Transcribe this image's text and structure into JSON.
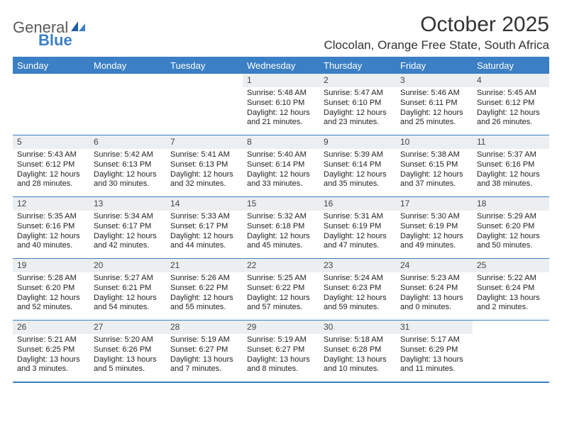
{
  "logo": {
    "text1": "General",
    "text2": "Blue"
  },
  "title": "October 2025",
  "location": "Clocolan, Orange Free State, South Africa",
  "colors": {
    "accent": "#3b7fc4",
    "header_bg": "#3b7fc4",
    "header_text": "#ffffff",
    "daynum_bg": "#eceff1",
    "border": "#3b7fc4",
    "body_text": "#222222",
    "title_text": "#333333",
    "logo_gray": "#5a5a5a"
  },
  "typography": {
    "title_fontsize": 30,
    "location_fontsize": 17,
    "dayheader_fontsize": 13,
    "daynum_fontsize": 12,
    "cell_fontsize": 11,
    "font_family": "Arial"
  },
  "layout": {
    "columns": 7,
    "rows": 5,
    "cell_min_height": 86
  },
  "day_headers": [
    "Sunday",
    "Monday",
    "Tuesday",
    "Wednesday",
    "Thursday",
    "Friday",
    "Saturday"
  ],
  "weeks": [
    [
      {
        "n": "",
        "sr": "",
        "ss": "",
        "dl": ""
      },
      {
        "n": "",
        "sr": "",
        "ss": "",
        "dl": ""
      },
      {
        "n": "",
        "sr": "",
        "ss": "",
        "dl": ""
      },
      {
        "n": "1",
        "sr": "Sunrise: 5:48 AM",
        "ss": "Sunset: 6:10 PM",
        "dl": "Daylight: 12 hours and 21 minutes."
      },
      {
        "n": "2",
        "sr": "Sunrise: 5:47 AM",
        "ss": "Sunset: 6:10 PM",
        "dl": "Daylight: 12 hours and 23 minutes."
      },
      {
        "n": "3",
        "sr": "Sunrise: 5:46 AM",
        "ss": "Sunset: 6:11 PM",
        "dl": "Daylight: 12 hours and 25 minutes."
      },
      {
        "n": "4",
        "sr": "Sunrise: 5:45 AM",
        "ss": "Sunset: 6:12 PM",
        "dl": "Daylight: 12 hours and 26 minutes."
      }
    ],
    [
      {
        "n": "5",
        "sr": "Sunrise: 5:43 AM",
        "ss": "Sunset: 6:12 PM",
        "dl": "Daylight: 12 hours and 28 minutes."
      },
      {
        "n": "6",
        "sr": "Sunrise: 5:42 AM",
        "ss": "Sunset: 6:13 PM",
        "dl": "Daylight: 12 hours and 30 minutes."
      },
      {
        "n": "7",
        "sr": "Sunrise: 5:41 AM",
        "ss": "Sunset: 6:13 PM",
        "dl": "Daylight: 12 hours and 32 minutes."
      },
      {
        "n": "8",
        "sr": "Sunrise: 5:40 AM",
        "ss": "Sunset: 6:14 PM",
        "dl": "Daylight: 12 hours and 33 minutes."
      },
      {
        "n": "9",
        "sr": "Sunrise: 5:39 AM",
        "ss": "Sunset: 6:14 PM",
        "dl": "Daylight: 12 hours and 35 minutes."
      },
      {
        "n": "10",
        "sr": "Sunrise: 5:38 AM",
        "ss": "Sunset: 6:15 PM",
        "dl": "Daylight: 12 hours and 37 minutes."
      },
      {
        "n": "11",
        "sr": "Sunrise: 5:37 AM",
        "ss": "Sunset: 6:16 PM",
        "dl": "Daylight: 12 hours and 38 minutes."
      }
    ],
    [
      {
        "n": "12",
        "sr": "Sunrise: 5:35 AM",
        "ss": "Sunset: 6:16 PM",
        "dl": "Daylight: 12 hours and 40 minutes."
      },
      {
        "n": "13",
        "sr": "Sunrise: 5:34 AM",
        "ss": "Sunset: 6:17 PM",
        "dl": "Daylight: 12 hours and 42 minutes."
      },
      {
        "n": "14",
        "sr": "Sunrise: 5:33 AM",
        "ss": "Sunset: 6:17 PM",
        "dl": "Daylight: 12 hours and 44 minutes."
      },
      {
        "n": "15",
        "sr": "Sunrise: 5:32 AM",
        "ss": "Sunset: 6:18 PM",
        "dl": "Daylight: 12 hours and 45 minutes."
      },
      {
        "n": "16",
        "sr": "Sunrise: 5:31 AM",
        "ss": "Sunset: 6:19 PM",
        "dl": "Daylight: 12 hours and 47 minutes."
      },
      {
        "n": "17",
        "sr": "Sunrise: 5:30 AM",
        "ss": "Sunset: 6:19 PM",
        "dl": "Daylight: 12 hours and 49 minutes."
      },
      {
        "n": "18",
        "sr": "Sunrise: 5:29 AM",
        "ss": "Sunset: 6:20 PM",
        "dl": "Daylight: 12 hours and 50 minutes."
      }
    ],
    [
      {
        "n": "19",
        "sr": "Sunrise: 5:28 AM",
        "ss": "Sunset: 6:20 PM",
        "dl": "Daylight: 12 hours and 52 minutes."
      },
      {
        "n": "20",
        "sr": "Sunrise: 5:27 AM",
        "ss": "Sunset: 6:21 PM",
        "dl": "Daylight: 12 hours and 54 minutes."
      },
      {
        "n": "21",
        "sr": "Sunrise: 5:26 AM",
        "ss": "Sunset: 6:22 PM",
        "dl": "Daylight: 12 hours and 55 minutes."
      },
      {
        "n": "22",
        "sr": "Sunrise: 5:25 AM",
        "ss": "Sunset: 6:22 PM",
        "dl": "Daylight: 12 hours and 57 minutes."
      },
      {
        "n": "23",
        "sr": "Sunrise: 5:24 AM",
        "ss": "Sunset: 6:23 PM",
        "dl": "Daylight: 12 hours and 59 minutes."
      },
      {
        "n": "24",
        "sr": "Sunrise: 5:23 AM",
        "ss": "Sunset: 6:24 PM",
        "dl": "Daylight: 13 hours and 0 minutes."
      },
      {
        "n": "25",
        "sr": "Sunrise: 5:22 AM",
        "ss": "Sunset: 6:24 PM",
        "dl": "Daylight: 13 hours and 2 minutes."
      }
    ],
    [
      {
        "n": "26",
        "sr": "Sunrise: 5:21 AM",
        "ss": "Sunset: 6:25 PM",
        "dl": "Daylight: 13 hours and 3 minutes."
      },
      {
        "n": "27",
        "sr": "Sunrise: 5:20 AM",
        "ss": "Sunset: 6:26 PM",
        "dl": "Daylight: 13 hours and 5 minutes."
      },
      {
        "n": "28",
        "sr": "Sunrise: 5:19 AM",
        "ss": "Sunset: 6:27 PM",
        "dl": "Daylight: 13 hours and 7 minutes."
      },
      {
        "n": "29",
        "sr": "Sunrise: 5:19 AM",
        "ss": "Sunset: 6:27 PM",
        "dl": "Daylight: 13 hours and 8 minutes."
      },
      {
        "n": "30",
        "sr": "Sunrise: 5:18 AM",
        "ss": "Sunset: 6:28 PM",
        "dl": "Daylight: 13 hours and 10 minutes."
      },
      {
        "n": "31",
        "sr": "Sunrise: 5:17 AM",
        "ss": "Sunset: 6:29 PM",
        "dl": "Daylight: 13 hours and 11 minutes."
      },
      {
        "n": "",
        "sr": "",
        "ss": "",
        "dl": ""
      }
    ]
  ]
}
